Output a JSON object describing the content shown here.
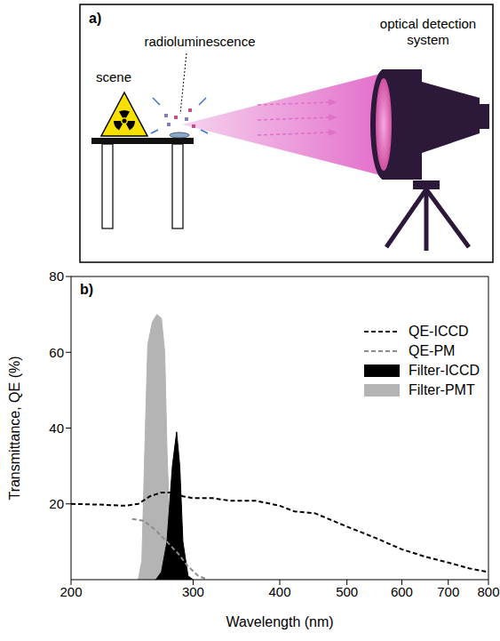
{
  "diagram": {
    "label": "a)",
    "scene": "scene",
    "source": "radioluminescence",
    "detector": "optical detection system"
  },
  "chart_data": {
    "type": "line",
    "title": "b)",
    "x_label": "Wavelength (nm)",
    "y_label": "Transmittance, QE (%)",
    "log": "x",
    "xlim": [
      200,
      800
    ],
    "xticks": [
      200,
      300,
      400,
      500,
      600,
      700,
      800
    ],
    "ylim": [
      0,
      80
    ],
    "yticks": [
      20,
      40,
      60,
      80
    ],
    "legend": "upper right",
    "series": [
      {
        "name": "QE-ICCD",
        "type": "line",
        "color": "#000000",
        "line_style": "dashed",
        "x": [
          200,
          220,
          240,
          250,
          260,
          270,
          280,
          290,
          300,
          320,
          340,
          370,
          400,
          420,
          450,
          500,
          550,
          600,
          650,
          700,
          750,
          800
        ],
        "values": [
          20,
          19.8,
          19.5,
          20,
          22,
          23,
          23,
          22,
          21.5,
          21.5,
          20.8,
          20.8,
          19.5,
          18,
          17.5,
          14,
          11,
          8,
          6,
          4.5,
          3,
          2
        ]
      },
      {
        "name": "QE-PM",
        "type": "line",
        "color": "#8c8c8c",
        "line_style": "dashed",
        "x": [
          245,
          255,
          265,
          275,
          285,
          295,
          305,
          315
        ],
        "values": [
          16,
          15.5,
          13,
          10,
          7,
          3.5,
          1,
          0
        ]
      },
      {
        "name": "Filter-ICCD",
        "type": "area",
        "color": "#000000",
        "x": [
          265,
          270,
          275,
          280,
          284,
          287,
          290,
          295,
          300
        ],
        "values": [
          0,
          2,
          10,
          30,
          39,
          30,
          10,
          1,
          0
        ]
      },
      {
        "name": "Filter-PMT",
        "type": "area",
        "color": "#b4b4b4",
        "x": [
          250,
          253,
          256,
          258,
          262,
          266,
          270,
          273,
          275,
          278,
          282,
          290
        ],
        "values": [
          0,
          5,
          40,
          62,
          68,
          70,
          69,
          60,
          35,
          10,
          2,
          0
        ]
      }
    ]
  }
}
